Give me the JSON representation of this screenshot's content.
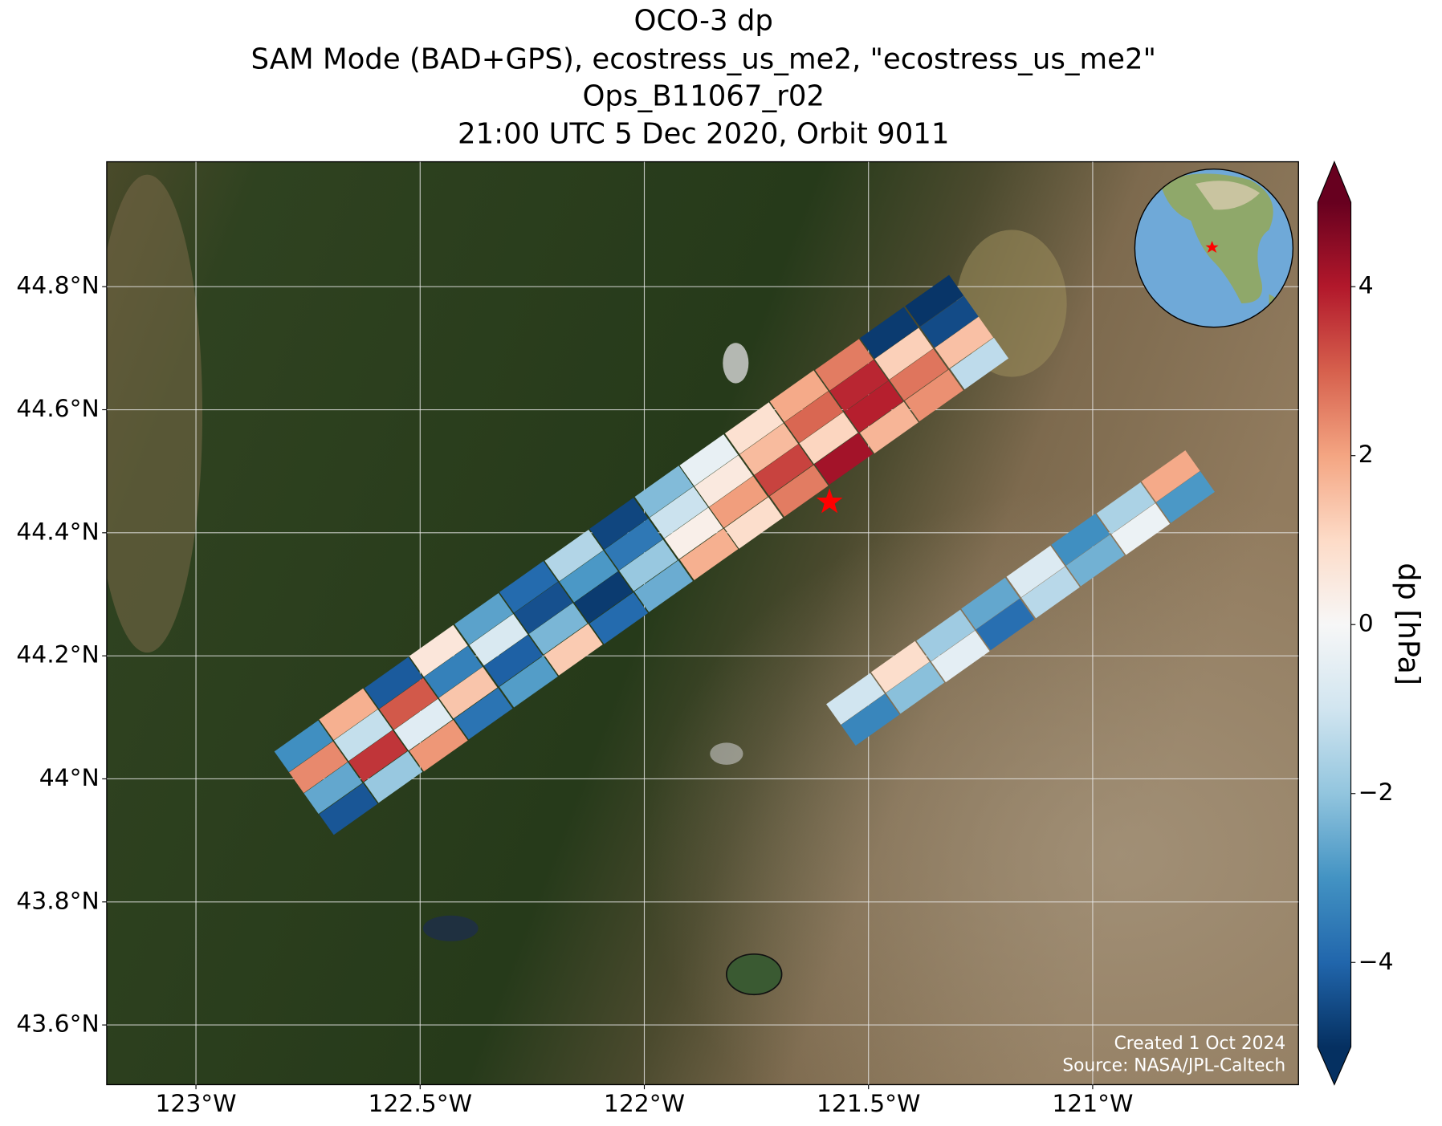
{
  "chart_data": {
    "type": "map",
    "title": [
      "OCO-3 dp",
      "SAM Mode (BAD+GPS), ecostress_us_me2, \"ecostress_us_me2\"",
      "Ops_B11067_r02",
      "21:00 UTC 5 Dec 2020, Orbit 9011"
    ],
    "xlim": [
      -123.199,
      -120.541
    ],
    "ylim": [
      43.503,
      45.003
    ],
    "xticks": [
      {
        "value": -123,
        "label": "123°W"
      },
      {
        "value": -122.5,
        "label": "122.5°W"
      },
      {
        "value": -122,
        "label": "122°W"
      },
      {
        "value": -121.5,
        "label": "121.5°W"
      },
      {
        "value": -121,
        "label": "121°W"
      }
    ],
    "yticks": [
      {
        "value": 43.6,
        "label": "43.6°N"
      },
      {
        "value": 43.8,
        "label": "43.8°N"
      },
      {
        "value": 44,
        "label": "44°N"
      },
      {
        "value": 44.2,
        "label": "44.2°N"
      },
      {
        "value": 44.4,
        "label": "44.4°N"
      },
      {
        "value": 44.6,
        "label": "44.6°N"
      },
      {
        "value": 44.8,
        "label": "44.8°N"
      }
    ],
    "grid": true,
    "target": {
      "lon": -121.587,
      "lat": 44.45,
      "color": "#ff0000"
    },
    "lon": [
      -122.76,
      -122.66,
      -122.559,
      -122.459,
      -122.358,
      -122.258,
      -122.157,
      -122.057,
      -121.956,
      -121.856,
      -121.755,
      -121.655,
      -121.554,
      -121.454,
      -121.353,
      -122.727,
      -122.627,
      -122.526,
      -122.426,
      -122.325,
      -122.225,
      -122.124,
      -122.024,
      -121.923,
      -121.823,
      -121.722,
      -121.622,
      -121.521,
      -121.421,
      -121.32,
      -122.694,
      -122.594,
      -122.493,
      -122.393,
      -122.292,
      -122.192,
      -122.091,
      -121.991,
      -121.89,
      -121.79,
      -121.689,
      -121.589,
      -121.488,
      -121.388,
      -121.287,
      -122.66,
      -122.56,
      -122.459,
      -122.359,
      -122.258,
      -122.158,
      -122.057,
      -121.957,
      -121.856,
      -121.756,
      -121.655,
      -121.555,
      -121.454,
      -121.354,
      -121.253,
      -121.529,
      -121.429,
      -121.328,
      -121.228,
      -121.127,
      -121.027,
      -120.926,
      -120.826,
      -121.496,
      -121.396,
      -121.295,
      -121.195,
      -121.094,
      -120.994,
      -120.893,
      -120.793
    ],
    "lat": [
      44.053,
      44.105,
      44.156,
      44.208,
      44.26,
      44.312,
      44.363,
      44.415,
      44.467,
      44.518,
      44.57,
      44.622,
      44.673,
      44.725,
      44.777,
      44.019,
      44.071,
      44.122,
      44.174,
      44.226,
      44.278,
      44.329,
      44.381,
      44.433,
      44.484,
      44.536,
      44.588,
      44.639,
      44.691,
      44.743,
      43.985,
      44.037,
      44.088,
      44.14,
      44.192,
      44.244,
      44.295,
      44.347,
      44.399,
      44.45,
      44.502,
      44.554,
      44.605,
      44.657,
      44.709,
      43.951,
      44.003,
      44.054,
      44.106,
      44.158,
      44.21,
      44.261,
      44.313,
      44.365,
      44.416,
      44.468,
      44.52,
      44.571,
      44.623,
      44.675,
      44.13,
      44.182,
      44.233,
      44.285,
      44.337,
      44.389,
      44.44,
      44.492,
      44.096,
      44.148,
      44.199,
      44.251,
      44.303,
      44.355,
      44.406,
      44.458
    ],
    "dp": [
      -3.1,
      1.8,
      -4.2,
      0.6,
      -2.7,
      -3.9,
      -1.5,
      -4.6,
      -2.2,
      -0.4,
      0.8,
      1.9,
      2.6,
      -4.8,
      -4.9,
      2.4,
      -1.2,
      3.1,
      -3.4,
      -0.8,
      -4.4,
      -2.9,
      -3.6,
      -1.1,
      0.5,
      1.6,
      2.9,
      3.8,
      1.2,
      -4.5,
      -2.6,
      3.6,
      -0.6,
      1.4,
      -4.1,
      -2.3,
      -4.8,
      -1.9,
      0.3,
      2.1,
      3.4,
      1.1,
      3.9,
      2.7,
      1.5,
      -4.3,
      -1.9,
      2.2,
      -3.7,
      -2.8,
      1.3,
      -3.9,
      -2.5,
      1.8,
      0.9,
      2.6,
      4.2,
      1.7,
      2.3,
      -1.3,
      -1.0,
      0.9,
      -1.8,
      -2.6,
      -0.7,
      -3.1,
      -1.6,
      1.9,
      -3.3,
      -2.1,
      -0.5,
      -3.8,
      -1.4,
      -2.4,
      -0.3,
      -2.9
    ],
    "colormap": [
      "#053061",
      "#2166ac",
      "#4393c3",
      "#92c5de",
      "#d1e5f0",
      "#f7f7f7",
      "#fddbc7",
      "#f4a582",
      "#d6604d",
      "#b2182b",
      "#67001f"
    ],
    "colorbar": {
      "label": "dp [hPa]",
      "lim": [
        -5,
        5
      ],
      "ticks": [
        {
          "value": -4,
          "label": "−4"
        },
        {
          "value": -2,
          "label": "−2"
        },
        0,
        2,
        4
      ]
    },
    "credits": [
      "Created 1 Oct 2024",
      "Source: NASA/JPL-Caltech"
    ]
  }
}
